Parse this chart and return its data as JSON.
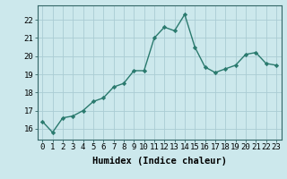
{
  "x": [
    0,
    1,
    2,
    3,
    4,
    5,
    6,
    7,
    8,
    9,
    10,
    11,
    12,
    13,
    14,
    15,
    16,
    17,
    18,
    19,
    20,
    21,
    22,
    23
  ],
  "y": [
    16.4,
    15.8,
    16.6,
    16.7,
    17.0,
    17.5,
    17.7,
    18.3,
    18.5,
    19.2,
    19.2,
    21.0,
    21.6,
    21.4,
    22.3,
    20.5,
    19.4,
    19.1,
    19.3,
    19.5,
    20.1,
    20.2,
    19.6,
    19.5
  ],
  "line_color": "#2a7a6e",
  "marker": "D",
  "marker_size": 2.2,
  "linewidth": 1.0,
  "xlabel": "Humidex (Indice chaleur)",
  "xlabel_fontsize": 7.5,
  "ylabel_ticks": [
    16,
    17,
    18,
    19,
    20,
    21,
    22
  ],
  "xlim": [
    -0.5,
    23.5
  ],
  "ylim": [
    15.4,
    22.8
  ],
  "xticks": [
    0,
    1,
    2,
    3,
    4,
    5,
    6,
    7,
    8,
    9,
    10,
    11,
    12,
    13,
    14,
    15,
    16,
    17,
    18,
    19,
    20,
    21,
    22,
    23
  ],
  "bg_color": "#cce8ec",
  "grid_color": "#aaccd4",
  "tick_fontsize": 6.5,
  "spine_color": "#336666"
}
